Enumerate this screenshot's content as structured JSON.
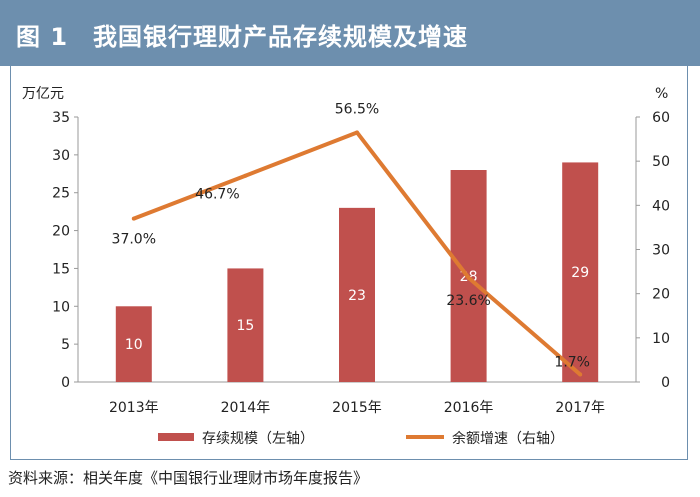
{
  "header": {
    "title": "图 1　我国银行理财产品存续规模及增速"
  },
  "source": "资料来源：相关年度《中国银行业理财市场年度报告》",
  "colors": {
    "bar": "#c0504d",
    "line": "#de7a32",
    "header_bg": "#6d8fae"
  },
  "chart_data": {
    "type": "bar+line",
    "title": "我国银行理财产品存续规模及增速",
    "categories": [
      "2013年",
      "2014年",
      "2015年",
      "2016年",
      "2017年"
    ],
    "series": [
      {
        "name": "存续规模（左轴）",
        "type": "bar",
        "axis": "left",
        "values": [
          10,
          15,
          23,
          28,
          29
        ],
        "labels": [
          "10",
          "15",
          "23",
          "28",
          "29"
        ]
      },
      {
        "name": "余额增速（右轴）",
        "type": "line",
        "axis": "right",
        "values": [
          37.0,
          46.7,
          56.5,
          23.6,
          1.7
        ],
        "labels": [
          "37.0%",
          "46.7%",
          "56.5%",
          "23.6%",
          "1.7%"
        ]
      }
    ],
    "left_axis": {
      "unit": "万亿元",
      "min": 0,
      "max": 35,
      "ticks": [
        "0",
        "5",
        "10",
        "15",
        "20",
        "25",
        "30",
        "35"
      ]
    },
    "right_axis": {
      "unit": "%",
      "min": 0,
      "max": 60,
      "ticks": [
        "0",
        "10",
        "20",
        "30",
        "40",
        "50",
        "60"
      ]
    },
    "legend": [
      "存续规模（左轴）",
      "余额增速（右轴）"
    ],
    "grid": false,
    "legend_position": "bottom"
  }
}
